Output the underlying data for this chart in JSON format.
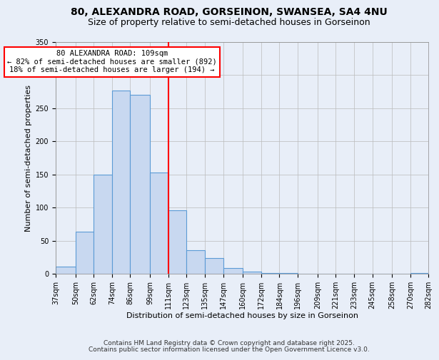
{
  "title": "80, ALEXANDRA ROAD, GORSEINON, SWANSEA, SA4 4NU",
  "subtitle": "Size of property relative to semi-detached houses in Gorseinon",
  "xlabel": "Distribution of semi-detached houses by size in Gorseinon",
  "ylabel": "Number of semi-detached properties",
  "bar_edges": [
    37,
    50,
    62,
    74,
    86,
    99,
    111,
    123,
    135,
    147,
    160,
    172,
    184,
    196,
    209,
    221,
    233,
    245,
    258,
    270,
    282
  ],
  "bar_heights": [
    11,
    64,
    150,
    277,
    270,
    153,
    96,
    36,
    24,
    9,
    4,
    1,
    1,
    0,
    0,
    0,
    0,
    0,
    0,
    1
  ],
  "bar_color": "#c8d8f0",
  "bar_edge_color": "#5b9bd5",
  "vline_x": 111,
  "vline_color": "red",
  "annotation_title": "80 ALEXANDRA ROAD: 109sqm",
  "annotation_line1": "← 82% of semi-detached houses are smaller (892)",
  "annotation_line2": "18% of semi-detached houses are larger (194) →",
  "ylim": [
    0,
    350
  ],
  "yticks": [
    0,
    50,
    100,
    150,
    200,
    250,
    300,
    350
  ],
  "tick_labels": [
    "37sqm",
    "50sqm",
    "62sqm",
    "74sqm",
    "86sqm",
    "99sqm",
    "111sqm",
    "123sqm",
    "135sqm",
    "147sqm",
    "160sqm",
    "172sqm",
    "184sqm",
    "196sqm",
    "209sqm",
    "221sqm",
    "233sqm",
    "245sqm",
    "258sqm",
    "270sqm",
    "282sqm"
  ],
  "footer1": "Contains HM Land Registry data © Crown copyright and database right 2025.",
  "footer2": "Contains public sector information licensed under the Open Government Licence v3.0.",
  "bg_color": "#e8eef8",
  "plot_bg_color": "#e8eef8",
  "title_fontsize": 10,
  "subtitle_fontsize": 9,
  "axis_label_fontsize": 8,
  "tick_fontsize": 7,
  "footer_fontsize": 6.5
}
